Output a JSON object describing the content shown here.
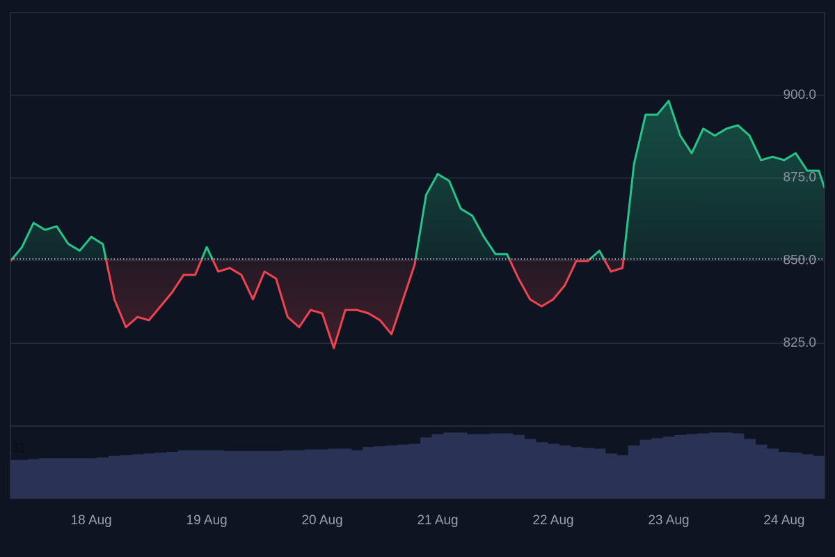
{
  "chart_data": {
    "type": "baseline",
    "x": [
      17.3,
      17.4,
      17.5,
      17.6,
      17.7,
      17.8,
      17.9,
      18.0,
      18.1,
      18.2,
      18.3,
      18.4,
      18.5,
      18.6,
      18.7,
      18.8,
      18.9,
      19.0,
      19.1,
      19.2,
      19.3,
      19.4,
      19.5,
      19.6,
      19.7,
      19.8,
      19.9,
      20.0,
      20.1,
      20.2,
      20.3,
      20.4,
      20.5,
      20.6,
      20.7,
      20.8,
      20.9,
      21.0,
      21.1,
      21.2,
      21.3,
      21.4,
      21.5,
      21.6,
      21.7,
      21.8,
      21.9,
      22.0,
      22.1,
      22.2,
      22.3,
      22.4,
      22.5,
      22.6,
      22.7,
      22.8,
      22.9,
      23.0,
      23.1,
      23.2,
      23.3,
      23.4,
      23.5,
      23.6,
      23.7,
      23.8,
      23.9,
      24.0,
      24.1,
      24.2,
      24.3,
      24.35
    ],
    "values": [
      849.9,
      854.1,
      861.4,
      859.3,
      860.4,
      855.1,
      853.0,
      857.2,
      855.0,
      838.3,
      829.9,
      833.0,
      832.0,
      836.2,
      840.4,
      845.7,
      845.7,
      854.1,
      846.7,
      847.8,
      845.7,
      838.3,
      846.7,
      844.6,
      833.0,
      829.9,
      835.1,
      834.1,
      823.6,
      835.1,
      835.1,
      834.1,
      832.0,
      827.8,
      838.3,
      848.8,
      869.9,
      876.2,
      874.1,
      865.7,
      863.6,
      857.2,
      852.0,
      852.0,
      844.6,
      838.3,
      836.2,
      838.3,
      842.5,
      849.9,
      849.9,
      853.0,
      846.7,
      847.8,
      879.3,
      894.1,
      894.1,
      898.3,
      887.8,
      882.5,
      889.9,
      887.8,
      889.9,
      890.9,
      887.8,
      880.4,
      881.4,
      880.4,
      882.5,
      877.2,
      877.2,
      872.0
    ],
    "baseline": 850.5,
    "up_color": "#26c488",
    "down_color": "#f0434f",
    "xlim": [
      17.3,
      24.35
    ],
    "xticks": [
      {
        "value": 18,
        "label": "18 Aug"
      },
      {
        "value": 19,
        "label": "19 Aug"
      },
      {
        "value": 20,
        "label": "20 Aug"
      },
      {
        "value": 21,
        "label": "21 Aug"
      },
      {
        "value": 22,
        "label": "22 Aug"
      },
      {
        "value": 23,
        "label": "23 Aug"
      },
      {
        "value": 24,
        "label": "24 Aug"
      }
    ],
    "ylim": [
      800,
      925
    ],
    "yticks": [
      {
        "value": 825,
        "label": "825.0"
      },
      {
        "value": 850,
        "label": "850.0"
      },
      {
        "value": 875,
        "label": "875.0"
      },
      {
        "value": 900,
        "label": "900.0"
      }
    ],
    "grid": true,
    "volume": {
      "color": "#2a3256",
      "values": [
        24,
        24,
        24.5,
        25,
        25,
        25,
        25,
        25,
        25.5,
        26.5,
        27,
        27.5,
        28,
        28.5,
        29,
        30,
        30,
        30,
        30,
        29.5,
        29.5,
        29.5,
        29.5,
        29.5,
        30,
        30,
        30.5,
        30.5,
        31,
        31,
        30,
        32,
        32.5,
        33,
        33.5,
        34,
        38,
        40,
        41,
        41,
        40,
        40,
        40.5,
        40.5,
        39.5,
        37,
        35,
        34,
        33,
        32,
        31.5,
        31,
        28,
        27,
        33,
        36.5,
        37.5,
        38.5,
        39.5,
        40,
        40.5,
        41,
        41,
        40.5,
        37,
        33.5,
        31,
        29,
        28.5,
        27.5,
        26.5,
        26.5
      ],
      "ylim": [
        0,
        45
      ],
      "yticks": [
        31
      ]
    }
  }
}
